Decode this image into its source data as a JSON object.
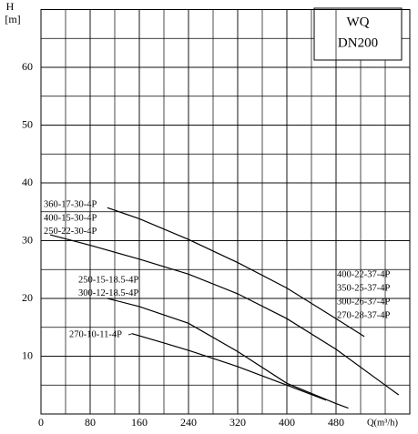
{
  "chart_data": {
    "type": "line",
    "title": "WQ",
    "subtitle": "DN200",
    "y_label": [
      "H",
      "[m]"
    ],
    "x_label": "Q(m³/h)",
    "xlim": [
      0,
      600
    ],
    "xticks": [
      0,
      80,
      160,
      240,
      320,
      400,
      480
    ],
    "ylim": [
      0,
      70
    ],
    "yticks": [
      10,
      20,
      30,
      40,
      50,
      60
    ],
    "grid": true,
    "series": [
      {
        "labels": [
          "360-17-30-4P"
        ],
        "color": "#000000",
        "x": [
          108,
          160,
          240,
          320,
          400,
          480,
          526
        ],
        "values": [
          35.7,
          33.8,
          30.2,
          26.2,
          21.8,
          16.5,
          13.4
        ]
      },
      {
        "labels": [
          "400-15-30-4P",
          "250-22-30-4P"
        ],
        "color": "#000000",
        "x": [
          15,
          80,
          160,
          240,
          320,
          400,
          480,
          560,
          582
        ],
        "values": [
          31,
          29.2,
          26.8,
          24.2,
          20.8,
          16.5,
          11.2,
          5,
          3.3
        ]
      },
      {
        "labels": [
          "250-15-18.5-4P",
          "300-12-18.5-4P"
        ],
        "color": "#000000",
        "x": [
          108,
          160,
          240,
          320,
          400,
          480,
          500
        ],
        "values": [
          20,
          18.6,
          15.7,
          10.8,
          5.3,
          1.8,
          1
        ]
      },
      {
        "labels": [
          "270-10-11-4P"
        ],
        "color": "#000000",
        "x": [
          148,
          200,
          240,
          320,
          400,
          464
        ],
        "values": [
          13.9,
          12.3,
          11,
          8.2,
          5,
          2.4
        ]
      }
    ],
    "annotations": [
      "400-22-37-4P",
      "350-25-37-4P",
      "300-26-37-4P",
      "270-28-37-4P"
    ]
  }
}
